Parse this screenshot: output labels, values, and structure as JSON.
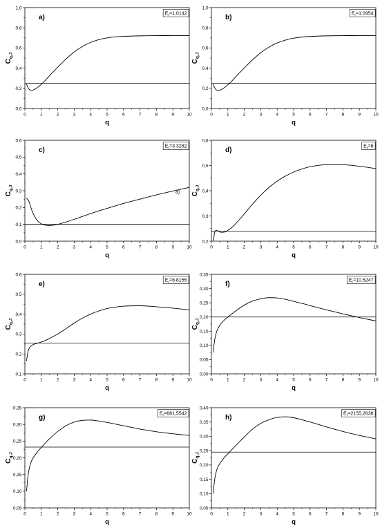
{
  "colors": {
    "background": "#ffffff",
    "line": "#000000"
  },
  "chart_data": [
    {
      "type": "line",
      "panel_label": "a)",
      "legend": {
        "symbol": "E",
        "subscript": "r",
        "value": "=1.0142"
      },
      "legend_position": "top-right",
      "xlabel": "q",
      "ylabel": {
        "symbol": "C",
        "subscript": "q,J"
      },
      "grid": false,
      "xlim": [
        0,
        10
      ],
      "ylim": [
        0,
        1.0
      ],
      "xticks": [
        0,
        1,
        2,
        3,
        4,
        5,
        6,
        7,
        8,
        9,
        10
      ],
      "xtick_labels": [
        "0",
        "1",
        "2",
        "3",
        "4",
        "5",
        "6",
        "7",
        "8",
        "9",
        "10"
      ],
      "yticks": [
        0,
        0.2,
        0.4,
        0.6,
        0.8,
        1.0
      ],
      "ytick_labels": [
        "0,0",
        "0,2",
        "0,4",
        "0,6",
        "0,8",
        "1,0"
      ],
      "hline": 0.25,
      "series": [
        {
          "x": [
            0.1,
            0.2,
            0.3,
            0.4,
            0.5,
            0.6,
            0.8,
            1,
            1.2,
            1.5,
            2,
            2.5,
            3,
            3.5,
            4,
            4.5,
            5,
            5.5,
            6,
            7,
            8,
            9,
            10
          ],
          "y": [
            0.24,
            0.205,
            0.185,
            0.18,
            0.183,
            0.19,
            0.212,
            0.24,
            0.272,
            0.325,
            0.41,
            0.49,
            0.56,
            0.615,
            0.655,
            0.683,
            0.7,
            0.71,
            0.715,
            0.72,
            0.722,
            0.723,
            0.723
          ]
        }
      ]
    },
    {
      "type": "line",
      "panel_label": "b)",
      "legend": {
        "symbol": "E",
        "subscript": "r",
        "value": "=1.0954"
      },
      "legend_position": "top-right",
      "xlabel": "q",
      "ylabel": {
        "symbol": "C",
        "subscript": "q,J"
      },
      "grid": false,
      "xlim": [
        0,
        10
      ],
      "ylim": [
        0,
        1.0
      ],
      "xticks": [
        0,
        1,
        2,
        3,
        4,
        5,
        6,
        7,
        8,
        9,
        10
      ],
      "xtick_labels": [
        "0",
        "1",
        "2",
        "3",
        "4",
        "5",
        "6",
        "7",
        "8",
        "9",
        "10"
      ],
      "yticks": [
        0,
        0.2,
        0.4,
        0.6,
        0.8,
        1.0
      ],
      "ytick_labels": [
        "0,0",
        "0,2",
        "0,4",
        "0,6",
        "0,8",
        "1,0"
      ],
      "hline": 0.25,
      "series": [
        {
          "x": [
            0.1,
            0.2,
            0.3,
            0.4,
            0.5,
            0.6,
            0.8,
            1,
            1.2,
            1.5,
            2,
            2.5,
            3,
            3.5,
            4,
            4.5,
            5,
            5.5,
            6,
            7,
            8,
            9,
            10
          ],
          "y": [
            0.24,
            0.205,
            0.183,
            0.178,
            0.18,
            0.187,
            0.208,
            0.235,
            0.265,
            0.318,
            0.402,
            0.482,
            0.553,
            0.608,
            0.65,
            0.678,
            0.697,
            0.708,
            0.714,
            0.72,
            0.722,
            0.723,
            0.723
          ]
        }
      ]
    },
    {
      "type": "line",
      "panel_label": "c)",
      "legend": {
        "symbol": "E",
        "subscript": "r",
        "value": "=3.3282"
      },
      "legend_position": "top-right",
      "xlabel": "q",
      "ylabel": {
        "symbol": "C",
        "subscript": "q,J"
      },
      "grid": false,
      "xlim": [
        0,
        10
      ],
      "ylim": [
        0,
        0.6
      ],
      "xticks": [
        0,
        1,
        2,
        3,
        4,
        5,
        6,
        7,
        8,
        9,
        10
      ],
      "xtick_labels": [
        "0",
        "1",
        "2",
        "3",
        "4",
        "5",
        "6",
        "7",
        "8",
        "9",
        "10"
      ],
      "yticks": [
        0,
        0.1,
        0.2,
        0.3,
        0.4,
        0.5,
        0.6
      ],
      "ytick_labels": [
        "0,0",
        "0,1",
        "0,2",
        "0,3",
        "0,4",
        "0,5",
        "0,6"
      ],
      "hline": 0.1,
      "annotations": [
        "a)"
      ],
      "series": [
        {
          "x": [
            0.1,
            0.2,
            0.3,
            0.4,
            0.5,
            0.6,
            0.8,
            1,
            1.2,
            1.5,
            2,
            2.5,
            3,
            3.5,
            4,
            4.5,
            5,
            5.5,
            6,
            7,
            8,
            9,
            10
          ],
          "y": [
            0.255,
            0.245,
            0.222,
            0.19,
            0.165,
            0.145,
            0.118,
            0.103,
            0.096,
            0.093,
            0.1,
            0.114,
            0.13,
            0.147,
            0.164,
            0.18,
            0.195,
            0.21,
            0.224,
            0.25,
            0.275,
            0.298,
            0.32
          ]
        }
      ]
    },
    {
      "type": "line",
      "panel_label": "d)",
      "legend": {
        "symbol": "E",
        "subscript": "r",
        "value": "=6"
      },
      "legend_position": "top-right",
      "xlabel": "q",
      "ylabel": {
        "symbol": "C",
        "subscript": "q,J"
      },
      "grid": false,
      "xlim": [
        0,
        10
      ],
      "ylim": [
        0.2,
        0.6
      ],
      "xticks": [
        0,
        1,
        2,
        3,
        4,
        5,
        6,
        7,
        8,
        9,
        10
      ],
      "xtick_labels": [
        "0",
        "1",
        "2",
        "3",
        "4",
        "5",
        "6",
        "7",
        "8",
        "9",
        "10"
      ],
      "yticks": [
        0.2,
        0.3,
        0.4,
        0.5,
        0.6
      ],
      "ytick_labels": [
        "0,2",
        "0,3",
        "0,4",
        "0,5",
        "0,6"
      ],
      "hline": 0.24,
      "series": [
        {
          "x": [
            0.12,
            0.2,
            0.3,
            0.4,
            0.5,
            0.6,
            0.8,
            1,
            1.2,
            1.5,
            2,
            2.5,
            3,
            3.5,
            4,
            4.5,
            5,
            5.5,
            6,
            7,
            8,
            9,
            10
          ],
          "y": [
            0.2,
            0.236,
            0.243,
            0.241,
            0.237,
            0.235,
            0.236,
            0.243,
            0.252,
            0.271,
            0.308,
            0.347,
            0.382,
            0.413,
            0.438,
            0.458,
            0.474,
            0.486,
            0.495,
            0.503,
            0.503,
            0.497,
            0.488
          ]
        }
      ]
    },
    {
      "type": "line",
      "panel_label": "e)",
      "legend": {
        "symbol": "E",
        "subscript": "r",
        "value": "=6.8155"
      },
      "legend_position": "top-right",
      "xlabel": "q",
      "ylabel": {
        "symbol": "C",
        "subscript": "q,J"
      },
      "grid": false,
      "xlim": [
        0,
        10
      ],
      "ylim": [
        0.1,
        0.6
      ],
      "xticks": [
        0,
        1,
        2,
        3,
        4,
        5,
        6,
        7,
        8,
        9,
        10
      ],
      "xtick_labels": [
        "0",
        "1",
        "2",
        "3",
        "4",
        "5",
        "6",
        "7",
        "8",
        "9",
        "10"
      ],
      "yticks": [
        0.1,
        0.2,
        0.3,
        0.4,
        0.5,
        0.6
      ],
      "ytick_labels": [
        "0,1",
        "0,2",
        "0,3",
        "0,4",
        "0,5",
        "0,6"
      ],
      "hline": 0.255,
      "series": [
        {
          "x": [
            0.1,
            0.2,
            0.3,
            0.4,
            0.5,
            0.6,
            0.8,
            1,
            1.2,
            1.5,
            2,
            2.5,
            3,
            3.5,
            4,
            4.5,
            5,
            5.5,
            6,
            7,
            8,
            9,
            10
          ],
          "y": [
            0.165,
            0.215,
            0.233,
            0.242,
            0.247,
            0.25,
            0.255,
            0.26,
            0.266,
            0.278,
            0.3,
            0.327,
            0.355,
            0.38,
            0.4,
            0.416,
            0.428,
            0.435,
            0.44,
            0.442,
            0.437,
            0.43,
            0.421
          ]
        }
      ]
    },
    {
      "type": "line",
      "panel_label": "f)",
      "legend": {
        "symbol": "E",
        "subscript": "r",
        "value": "=10.5247"
      },
      "legend_position": "top-right",
      "xlabel": "q",
      "ylabel": {
        "symbol": "C",
        "subscript": "q,J"
      },
      "grid": false,
      "xlim": [
        0,
        10
      ],
      "ylim": [
        0,
        0.35
      ],
      "xticks": [
        0,
        1,
        2,
        3,
        4,
        5,
        6,
        7,
        8,
        9,
        10
      ],
      "xtick_labels": [
        "0",
        "1",
        "2",
        "3",
        "4",
        "5",
        "6",
        "7",
        "8",
        "9",
        "10"
      ],
      "yticks": [
        0,
        0.05,
        0.1,
        0.15,
        0.2,
        0.25,
        0.3,
        0.35
      ],
      "ytick_labels": [
        "0,00",
        "0,05",
        "0,10",
        "0,15",
        "0,20",
        "0,25",
        "0,30",
        "0,35"
      ],
      "hline": 0.2,
      "series": [
        {
          "x": [
            0.1,
            0.2,
            0.3,
            0.4,
            0.5,
            0.6,
            0.8,
            1,
            1.2,
            1.5,
            2,
            2.5,
            3,
            3.5,
            4,
            4.5,
            5,
            5.5,
            6,
            7,
            8,
            9,
            10
          ],
          "y": [
            0.075,
            0.12,
            0.145,
            0.16,
            0.17,
            0.178,
            0.19,
            0.2,
            0.209,
            0.222,
            0.242,
            0.256,
            0.264,
            0.268,
            0.267,
            0.262,
            0.255,
            0.248,
            0.24,
            0.225,
            0.211,
            0.198,
            0.186
          ]
        }
      ]
    },
    {
      "type": "line",
      "panel_label": "g)",
      "legend": {
        "symbol": "E",
        "subscript": "r",
        "value": "=681,5542"
      },
      "legend_position": "top-right",
      "xlabel": "q",
      "ylabel": {
        "symbol": "C",
        "subscript": "q,J"
      },
      "grid": false,
      "xlim": [
        0,
        10
      ],
      "ylim": [
        0.05,
        0.35
      ],
      "xticks": [
        0,
        1,
        2,
        3,
        4,
        5,
        6,
        7,
        8,
        9,
        10
      ],
      "xtick_labels": [
        "0",
        "1",
        "2",
        "3",
        "4",
        "5",
        "6",
        "7",
        "8",
        "9",
        "10"
      ],
      "yticks": [
        0.05,
        0.1,
        0.15,
        0.2,
        0.25,
        0.3,
        0.35
      ],
      "ytick_labels": [
        "0,05",
        "0,10",
        "0,15",
        "0,20",
        "0,25",
        "0,30",
        "0,35"
      ],
      "hline": 0.232,
      "series": [
        {
          "x": [
            0.1,
            0.2,
            0.3,
            0.4,
            0.5,
            0.6,
            0.8,
            1,
            1.2,
            1.5,
            2,
            2.5,
            3,
            3.5,
            4,
            4.5,
            5,
            5.5,
            6,
            7,
            8,
            9,
            10
          ],
          "y": [
            0.1,
            0.15,
            0.175,
            0.19,
            0.2,
            0.207,
            0.22,
            0.231,
            0.242,
            0.257,
            0.279,
            0.296,
            0.307,
            0.312,
            0.313,
            0.31,
            0.306,
            0.301,
            0.296,
            0.286,
            0.278,
            0.272,
            0.267
          ]
        }
      ]
    },
    {
      "type": "line",
      "panel_label": "h)",
      "legend": {
        "symbol": "E",
        "subscript": "r",
        "value": "=2155,2636"
      },
      "legend_position": "top-right",
      "xlabel": "q",
      "ylabel": {
        "symbol": "C",
        "subscript": "q,J"
      },
      "grid": false,
      "xlim": [
        0,
        10
      ],
      "ylim": [
        0.05,
        0.4
      ],
      "xticks": [
        0,
        1,
        2,
        3,
        4,
        5,
        6,
        7,
        8,
        9,
        10
      ],
      "xtick_labels": [
        "0",
        "1",
        "2",
        "3",
        "4",
        "5",
        "6",
        "7",
        "8",
        "9",
        "10"
      ],
      "yticks": [
        0.05,
        0.1,
        0.15,
        0.2,
        0.25,
        0.3,
        0.35,
        0.4
      ],
      "ytick_labels": [
        "0,05",
        "0,10",
        "0,15",
        "0,20",
        "0,25",
        "0,30",
        "0,35",
        "0,40"
      ],
      "hline": 0.245,
      "series": [
        {
          "x": [
            0.1,
            0.2,
            0.3,
            0.4,
            0.5,
            0.6,
            0.8,
            1,
            1.2,
            1.5,
            2,
            2.5,
            3,
            3.5,
            4,
            4.5,
            5,
            5.5,
            6,
            7,
            8,
            9,
            10
          ],
          "y": [
            0.1,
            0.15,
            0.178,
            0.194,
            0.204,
            0.212,
            0.227,
            0.239,
            0.251,
            0.269,
            0.298,
            0.325,
            0.345,
            0.358,
            0.366,
            0.368,
            0.365,
            0.358,
            0.35,
            0.333,
            0.317,
            0.303,
            0.291
          ]
        }
      ]
    }
  ]
}
